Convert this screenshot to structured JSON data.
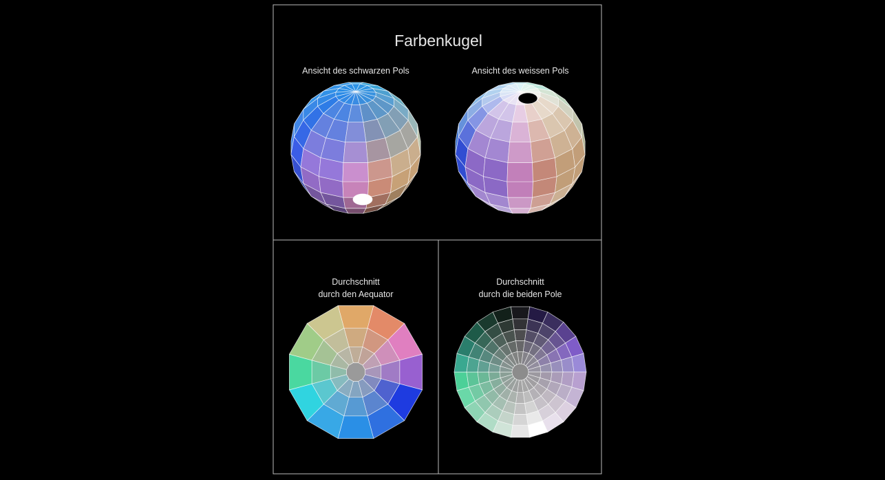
{
  "title": "Farbenkugel",
  "panels": {
    "black_pole_view": {
      "caption": "Ansicht des schwarzen Pols"
    },
    "white_pole_view": {
      "caption": "Ansicht des weissen Pols"
    },
    "equator_section": {
      "caption_line1": "Durchschnitt",
      "caption_line2": "durch den Aequator"
    },
    "poles_section": {
      "caption_line1": "Durchschnitt",
      "caption_line2": "durch die beiden Pole"
    }
  },
  "colors": {
    "background": "#000000",
    "frame": "#bdbdbd",
    "grid_line": "#ffffff",
    "text": "#e6e6e6"
  },
  "hue_ring_outer": [
    "#e0a868",
    "#e38a68",
    "#e07fc0",
    "#9860d0",
    "#1e3be0",
    "#2f70e0",
    "#2a8fe6",
    "#38a8e6",
    "#30d4e0",
    "#4ad8a0",
    "#a0cc88",
    "#ccc690"
  ],
  "poles_section_columns": [
    "#18181c",
    "#241a44",
    "#3a2e5e",
    "#5a4290",
    "#7f5cc8",
    "#9a8ad8",
    "#b8a0d0",
    "#c4b4d4",
    "#dcd0e0",
    "#e8e0ec",
    "#ffffff",
    "#e6e6e6",
    "#d0e4d8",
    "#b0dcc6",
    "#8ed4b4",
    "#6ad8a8",
    "#4cd098",
    "#3aa890",
    "#2a7e6c",
    "#1e5a48",
    "#1a3a2e",
    "#12201a"
  ]
}
